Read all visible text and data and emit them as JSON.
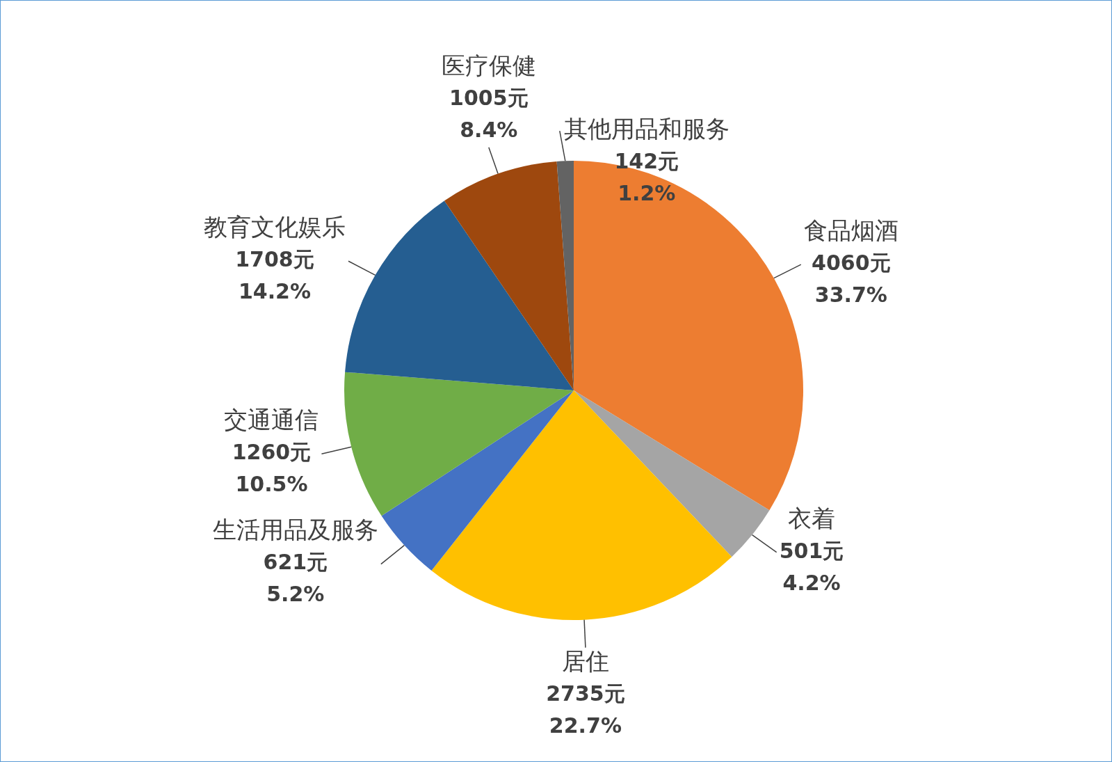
{
  "chart_data": {
    "type": "pie",
    "categories": [
      "食品烟酒",
      "衣着",
      "居住",
      "生活用品及服务",
      "交通通信",
      "教育文化娱乐",
      "医疗保健",
      "其他用品和服务"
    ],
    "values": [
      4060,
      501,
      2735,
      621,
      1260,
      1708,
      1005,
      142
    ],
    "colors": [
      "#ed7d31",
      "#a5a5a5",
      "#ffc000",
      "#4472c4",
      "#70ad47",
      "#255e91",
      "#9e480e",
      "#636363"
    ],
    "value_labels": [
      "4060元\n33.7%",
      "501元\n4.2%",
      "2735元\n22.7%",
      "621元\n5.2%",
      "1260元\n10.5%",
      "1708元\n14.2%",
      "1005元\n8.4%",
      "142元\n1.2%"
    ],
    "legend": false
  }
}
